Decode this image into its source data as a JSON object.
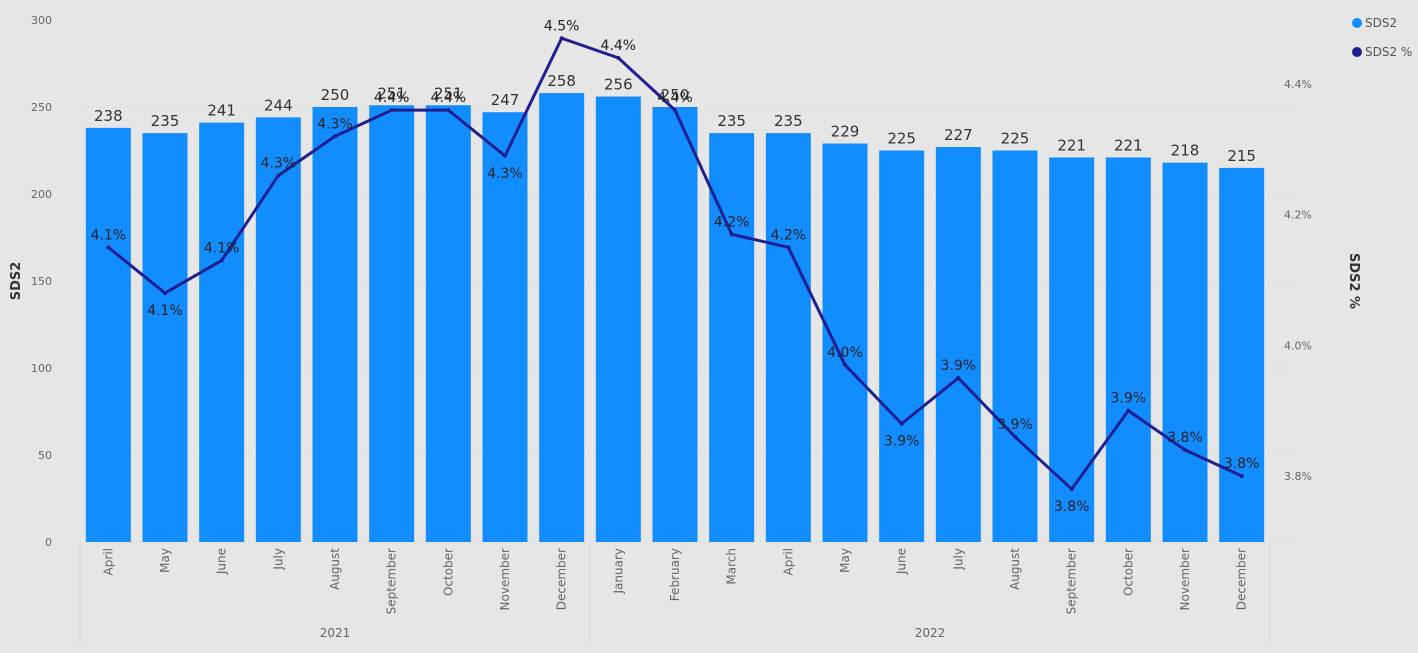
{
  "chart_data": {
    "type": "bar+line",
    "title": "",
    "x_groups": [
      {
        "label": "2021",
        "months": [
          "April",
          "May",
          "June",
          "July",
          "August",
          "September",
          "October",
          "November",
          "December"
        ]
      },
      {
        "label": "2022",
        "months": [
          "January",
          "February",
          "March",
          "April",
          "May",
          "June",
          "July",
          "August",
          "September",
          "October",
          "November",
          "December"
        ]
      }
    ],
    "categories": [
      "April",
      "May",
      "June",
      "July",
      "August",
      "September",
      "October",
      "November",
      "December",
      "January",
      "February",
      "March",
      "April",
      "May",
      "June",
      "July",
      "August",
      "September",
      "October",
      "November",
      "December"
    ],
    "series": [
      {
        "name": "SDS2",
        "type": "bar",
        "axis": "left",
        "color": "#118dff",
        "values": [
          238,
          235,
          241,
          244,
          250,
          251,
          251,
          247,
          258,
          256,
          250,
          235,
          235,
          229,
          225,
          227,
          225,
          221,
          221,
          218,
          215
        ],
        "labels": [
          "238",
          "235",
          "241",
          "244",
          "250",
          "251",
          "251",
          "247",
          "258",
          "256",
          "250",
          "235",
          "235",
          "229",
          "225",
          "227",
          "225",
          "221",
          "221",
          "218",
          "215"
        ]
      },
      {
        "name": "SDS2 %",
        "type": "line",
        "axis": "right",
        "color": "#1f1f8f",
        "values": [
          4.15,
          4.08,
          4.13,
          4.26,
          4.32,
          4.36,
          4.36,
          4.29,
          4.47,
          4.44,
          4.36,
          4.17,
          4.15,
          3.97,
          3.88,
          3.95,
          3.86,
          3.78,
          3.9,
          3.84,
          3.8
        ],
        "labels": [
          "4.1%",
          "4.1%",
          "4.1%",
          "4.3%",
          "4.3%",
          "4.4%",
          "4.4%",
          "4.3%",
          "4.5%",
          "4.4%",
          "4.4%",
          "4.2%",
          "4.2%",
          "4.0%",
          "3.9%",
          "3.9%",
          "3.9%",
          "3.8%",
          "3.9%",
          "3.8%",
          "3.8%"
        ]
      }
    ],
    "y_left": {
      "title": "SDS2",
      "min": 0,
      "max": 300,
      "ticks": [
        0,
        50,
        100,
        150,
        200,
        250,
        300
      ],
      "tick_labels": [
        "0",
        "50",
        "100",
        "150",
        "200",
        "250",
        "300"
      ]
    },
    "y_right": {
      "title": "SDS2 %",
      "min": 3.7,
      "max": 4.5,
      "ticks": [
        3.8,
        4.0,
        4.2,
        4.4
      ],
      "tick_labels": [
        "3.8%",
        "4.0%",
        "4.2%",
        "4.4%"
      ]
    },
    "grid": true,
    "legend": {
      "position": "top-right",
      "entries": [
        {
          "label": "SDS2",
          "color": "#118dff"
        },
        {
          "label": "SDS2 %",
          "color": "#1f1f8f"
        }
      ]
    }
  }
}
